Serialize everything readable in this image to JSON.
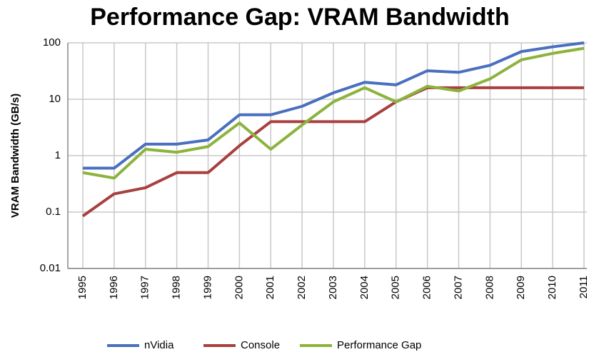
{
  "chart_data": {
    "type": "line",
    "title": "Performance Gap: VRAM Bandwidth",
    "y_label": "VRAM Bandwidth (GB/s)",
    "categories": [
      "1995",
      "1996",
      "1997",
      "1998",
      "1999",
      "2000",
      "2001",
      "2002",
      "2003",
      "2004",
      "2005",
      "2006",
      "2007",
      "2008",
      "2009",
      "2010",
      "2011"
    ],
    "series": [
      {
        "name": "nVidia",
        "color": "#4a6fbf",
        "values": [
          0.6,
          0.6,
          1.6,
          1.6,
          1.9,
          5.3,
          5.3,
          7.5,
          13,
          20,
          18,
          32,
          30,
          40,
          70,
          85,
          100
        ]
      },
      {
        "name": "Console",
        "color": "#a84040",
        "values": [
          0.085,
          0.21,
          0.27,
          0.5,
          0.5,
          1.5,
          4,
          4,
          4,
          4,
          9,
          16,
          16,
          16,
          16,
          16,
          16
        ]
      },
      {
        "name": "Performance Gap",
        "color": "#8cb33c",
        "values": [
          0.5,
          0.4,
          1.3,
          1.15,
          1.45,
          3.8,
          1.3,
          3.5,
          9,
          16,
          9,
          17,
          14,
          23,
          50,
          65,
          80
        ]
      }
    ],
    "log_y": true,
    "ylim": [
      0.01,
      100
    ],
    "yticks": [
      0.01,
      0.1,
      1,
      10,
      100
    ],
    "grid": true,
    "legend": "bottom"
  }
}
